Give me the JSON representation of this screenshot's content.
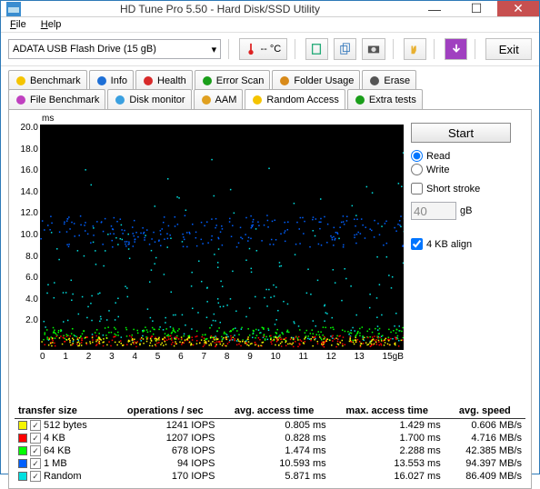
{
  "window": {
    "title": "HD Tune Pro 5.50 - Hard Disk/SSD Utility"
  },
  "menu": {
    "file": "File",
    "help": "Help"
  },
  "toolbar": {
    "drive": "ADATA  USB Flash Drive (15 gB)",
    "temp": "-- °C",
    "exit": "Exit"
  },
  "tabs_row1": [
    {
      "label": "Benchmark",
      "color": "#f5c400"
    },
    {
      "label": "Info",
      "color": "#1e6fd6"
    },
    {
      "label": "Health",
      "color": "#d82a2a"
    },
    {
      "label": "Error Scan",
      "color": "#1a9e1a"
    },
    {
      "label": "Folder Usage",
      "color": "#d88a1a"
    },
    {
      "label": "Erase",
      "color": "#555"
    }
  ],
  "tabs_row2": [
    {
      "label": "File Benchmark",
      "color": "#c040c0"
    },
    {
      "label": "Disk monitor",
      "color": "#3aa0e0"
    },
    {
      "label": "AAM",
      "color": "#e0a020"
    },
    {
      "label": "Random Access",
      "color": "#f5c400",
      "active": true
    },
    {
      "label": "Extra tests",
      "color": "#1a9e1a"
    }
  ],
  "side": {
    "start": "Start",
    "read": "Read",
    "write": "Write",
    "short_stroke": "Short stroke",
    "stroke_val": "40",
    "stroke_unit": "gB",
    "align": "4 KB align"
  },
  "chart": {
    "ms_label": "ms",
    "y_ticks": [
      "20.0",
      "18.0",
      "16.0",
      "14.0",
      "12.0",
      "10.0",
      "8.0",
      "6.0",
      "4.0",
      "2.0",
      ""
    ],
    "x_ticks": [
      "0",
      "1",
      "2",
      "3",
      "4",
      "5",
      "6",
      "7",
      "8",
      "9",
      "10",
      "11",
      "12",
      "13",
      "15gB"
    ],
    "series_colors": {
      "s512": "#f5f500",
      "s4kb": "#ff0000",
      "s64kb": "#00ff00",
      "s1mb": "#0060ff",
      "srandom": "#00e0e0"
    },
    "scatter": {
      "s1mb": {
        "y_mean": 10.59,
        "y_spread": 1.4,
        "count": 240
      },
      "srandom": {
        "y_mean": 5.87,
        "y_spread": 5.0,
        "count": 260
      },
      "s64kb": {
        "y_mean": 1.47,
        "y_spread": 0.6,
        "count": 240
      },
      "s4kb": {
        "y_mean": 0.83,
        "y_spread": 0.5,
        "count": 240
      },
      "s512": {
        "y_mean": 0.81,
        "y_spread": 0.4,
        "count": 240
      }
    },
    "ylim": [
      0,
      20
    ],
    "xlim": [
      0,
      15
    ]
  },
  "table": {
    "headers": [
      "transfer size",
      "operations / sec",
      "avg. access time",
      "max. access time",
      "avg. speed"
    ],
    "rows": [
      {
        "color": "#f5f500",
        "size": "512 bytes",
        "ops": "1241 IOPS",
        "avg": "0.805 ms",
        "max": "1.429 ms",
        "speed": "0.606 MB/s"
      },
      {
        "color": "#ff0000",
        "size": "4 KB",
        "ops": "1207 IOPS",
        "avg": "0.828 ms",
        "max": "1.700 ms",
        "speed": "4.716 MB/s"
      },
      {
        "color": "#00ff00",
        "size": "64 KB",
        "ops": "678 IOPS",
        "avg": "1.474 ms",
        "max": "2.288 ms",
        "speed": "42.385 MB/s"
      },
      {
        "color": "#0060ff",
        "size": "1 MB",
        "ops": "94 IOPS",
        "avg": "10.593 ms",
        "max": "13.553 ms",
        "speed": "94.397 MB/s"
      },
      {
        "color": "#00e0e0",
        "size": "Random",
        "ops": "170 IOPS",
        "avg": "5.871 ms",
        "max": "16.027 ms",
        "speed": "86.409 MB/s"
      }
    ]
  }
}
